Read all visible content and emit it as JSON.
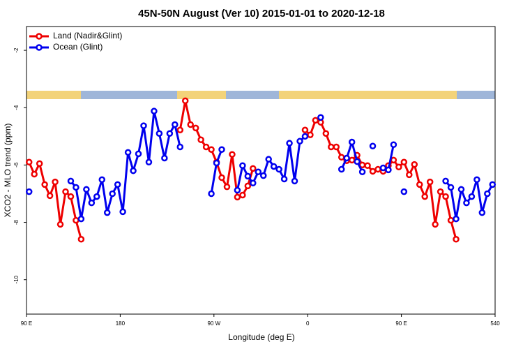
{
  "chart_data": {
    "type": "line",
    "title": "45N-50N August (Ver 10)   2015-01-01 to 2020-12-18",
    "x_label": "Longitude (deg E)",
    "y_label": "XCO2 - MLO trend (ppm)",
    "x": [
      92.5,
      97.5,
      102.5,
      107.5,
      112.5,
      117.5,
      122.5,
      127.5,
      132.5,
      137.5,
      142.5,
      147.5,
      152.5,
      157.5,
      162.5,
      167.5,
      172.5,
      177.5,
      182.5,
      187.5,
      192.5,
      197.5,
      202.5,
      207.5,
      212.5,
      217.5,
      222.5,
      227.5,
      232.5,
      237.5,
      242.5,
      247.5,
      252.5,
      257.5,
      262.5,
      267.5,
      272.5,
      277.5,
      282.5,
      287.5,
      292.5,
      297.5,
      302.5,
      307.5,
      312.5,
      317.5,
      322.5,
      327.5,
      332.5,
      337.5,
      342.5,
      347.5,
      352.5,
      357.5,
      362.5,
      367.5,
      372.5,
      377.5,
      382.5,
      387.5,
      392.5,
      397.5,
      402.5,
      407.5,
      412.5,
      417.5,
      422.5,
      427.5,
      432.5,
      437.5,
      442.5,
      447.5,
      452.5,
      457.5,
      462.5,
      467.5,
      472.5,
      477.5,
      482.5,
      487.5,
      492.5,
      497.5,
      502.5,
      507.5,
      512.5,
      517.5,
      522.5,
      527.5,
      532.5,
      537.5
    ],
    "series": [
      {
        "name": "Land (Nadir&Glint)",
        "color": "#ee0000",
        "values": [
          -5.9,
          -6.32,
          -5.95,
          -6.68,
          -7.07,
          -6.59,
          -8.07,
          -6.93,
          -7.1,
          -7.93,
          -8.59,
          null,
          null,
          null,
          null,
          null,
          null,
          null,
          null,
          null,
          null,
          null,
          null,
          null,
          null,
          null,
          null,
          null,
          null,
          -4.78,
          -3.76,
          -4.59,
          -4.71,
          -5.12,
          -5.37,
          -5.46,
          -5.9,
          -6.44,
          -6.76,
          -5.63,
          -7.12,
          -7.05,
          -6.73,
          -6.12,
          null,
          null,
          null,
          null,
          null,
          null,
          null,
          null,
          null,
          -4.78,
          -4.95,
          -4.44,
          -4.51,
          -4.9,
          -5.37,
          -5.37,
          -5.73,
          -5.85,
          -5.83,
          -5.66,
          -6.0,
          -6.02,
          -6.22,
          -6.15,
          -6.22,
          -6.02,
          -5.83,
          -6.07,
          -5.9,
          -6.34,
          -5.98,
          -6.68,
          -7.1,
          -6.59,
          -8.07,
          -6.93,
          -7.1,
          -7.93,
          -8.59,
          null,
          null,
          null,
          null,
          null,
          null,
          null
        ]
      },
      {
        "name": "Ocean (Glint)",
        "color": "#0000ee",
        "values": [
          -6.93,
          null,
          null,
          null,
          null,
          null,
          null,
          null,
          -6.56,
          -6.78,
          -7.88,
          -6.85,
          -7.32,
          -7.1,
          -6.51,
          -7.66,
          -7.0,
          -6.68,
          -7.63,
          -5.56,
          -6.2,
          -5.61,
          -4.63,
          -5.9,
          -4.12,
          -4.9,
          -5.76,
          -4.9,
          -4.59,
          -5.37,
          null,
          null,
          null,
          null,
          null,
          -7.0,
          -5.93,
          -5.46,
          null,
          null,
          -6.88,
          -6.02,
          -6.39,
          -6.63,
          -6.24,
          -6.37,
          -5.8,
          -6.05,
          -6.15,
          -6.49,
          -5.24,
          -6.56,
          -5.17,
          -5.0,
          null,
          null,
          -4.34,
          null,
          null,
          null,
          -6.15,
          -5.76,
          -5.2,
          -5.88,
          -6.24,
          null,
          -5.34,
          null,
          -6.1,
          -6.17,
          -5.29,
          null,
          -6.93,
          null,
          null,
          null,
          null,
          null,
          null,
          null,
          -6.56,
          -6.78,
          -7.88,
          -6.85,
          -7.32,
          -7.1,
          -6.51,
          -7.66,
          -7.0,
          -6.68
        ]
      }
    ],
    "xlim": [
      90,
      540
    ],
    "xticks": [
      {
        "value": 90,
        "label": "90 E"
      },
      180,
      {
        "value": 270,
        "label": "90 W"
      },
      {
        "value": 360,
        "label": "0"
      },
      {
        "value": 450,
        "label": "90 E"
      },
      540
    ],
    "ylim": [
      -11.2,
      -1.17
    ],
    "yticks": [
      -2,
      -4,
      -6,
      -8,
      -10
    ],
    "legend": "top-left"
  }
}
